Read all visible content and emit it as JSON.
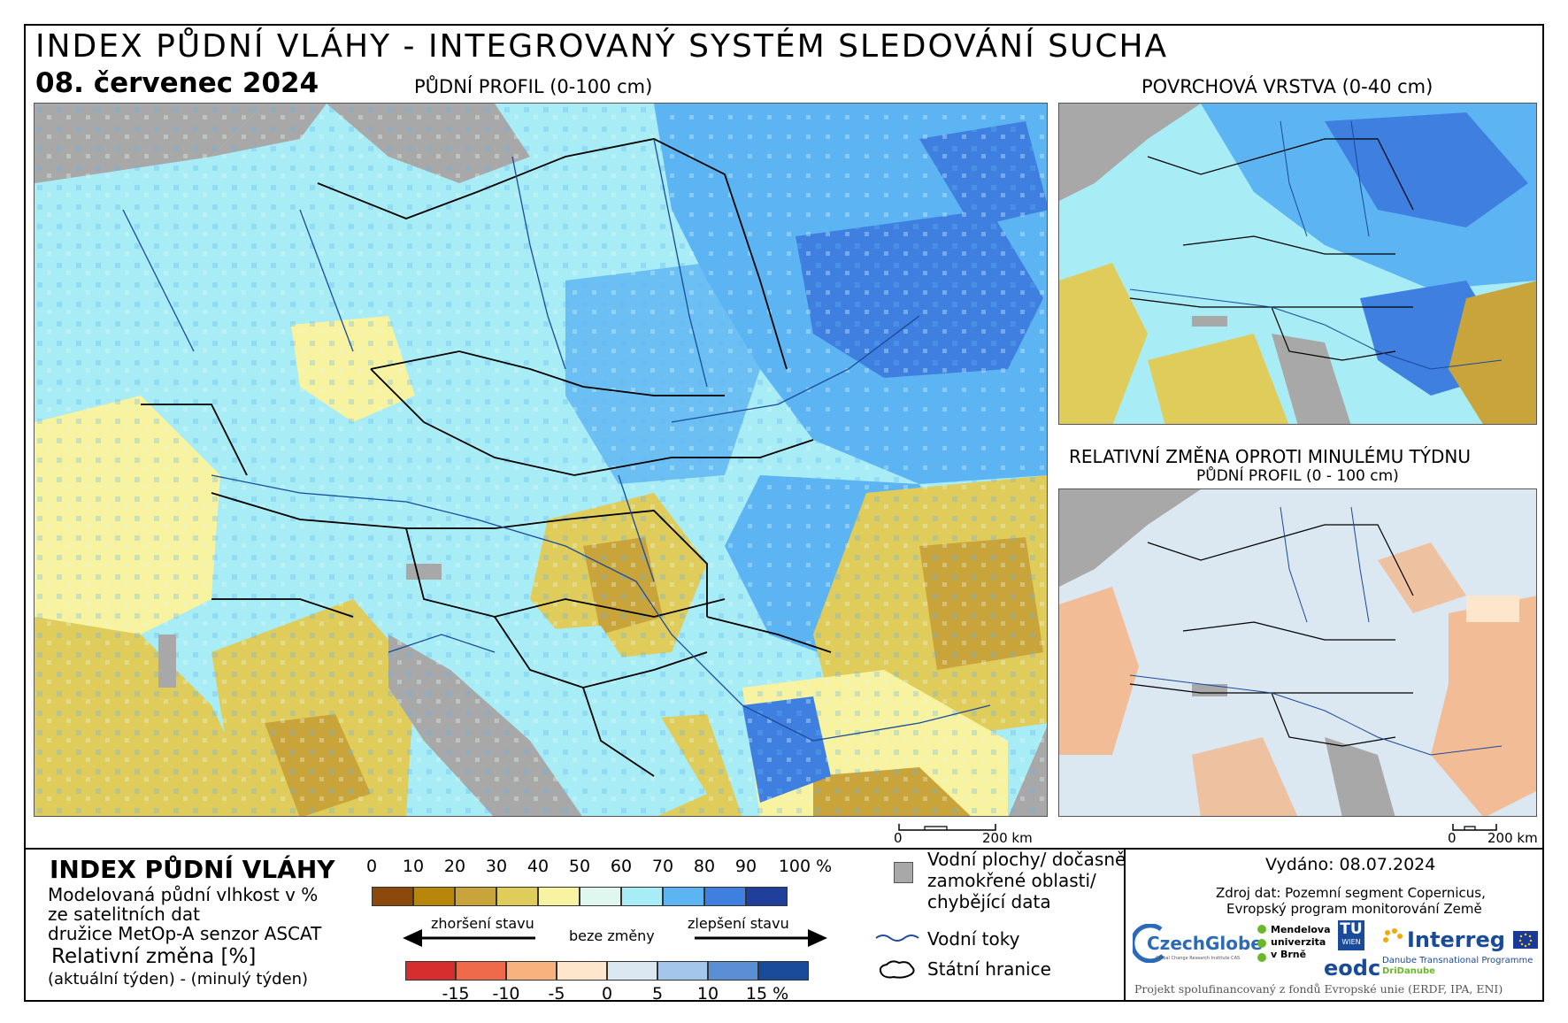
{
  "header": {
    "title": "INDEX PŮDNÍ VLÁHY - INTEGROVANÝ SYSTÉM SLEDOVÁNÍ SUCHA",
    "date": "08. červenec 2024"
  },
  "maps": {
    "main_label": "PŮDNÍ PROFIL (0-100 cm)",
    "surface_label": "POVRCHOVÁ VRSTVA (0-40 cm)",
    "change_label": "RELATIVNÍ ZMĚNA OPROTI MINULÉMU TÝDNU",
    "change_sublabel": "PŮDNÍ PROFIL (0 - 100 cm)",
    "scale_main": {
      "start": "0",
      "end": "200 km"
    },
    "scale_small": {
      "start": "0",
      "end": "200 km"
    }
  },
  "legend": {
    "title": "INDEX PŮDNÍ VLÁHY",
    "desc_line1": "Modelovaná půdní vlhkost v %",
    "desc_line2": "ze satelitních dat",
    "desc_line3": "družice MetOp-A senzor ASCAT",
    "change_title": "Relativní změna [%]",
    "change_desc": "(aktuální týden) - (minulý týden)",
    "index_ticks": [
      "0",
      "10",
      "20",
      "30",
      "40",
      "50",
      "60",
      "70",
      "80",
      "90",
      "100 %"
    ],
    "index_colors": [
      "#8b4a0c",
      "#b8860b",
      "#c9a43a",
      "#e0cc5a",
      "#f7f3a0",
      "#e0f7f0",
      "#a8ecf5",
      "#5db4f2",
      "#3f7fe0",
      "#1f3f9a"
    ],
    "worse_label": "zhoršení stavu",
    "nochange_label": "beze změny",
    "better_label": "zlepšení stavu",
    "change_ticks": [
      "-15",
      "-10",
      "-5",
      "0",
      "5",
      "10",
      "15 %"
    ],
    "change_colors": [
      "#d62e2e",
      "#ef6a4a",
      "#f7b27e",
      "#fde6cc",
      "#dbe8f2",
      "#a4c6ea",
      "#5a8fd6",
      "#1a4a9a"
    ],
    "items": {
      "water_line1": "Vodní plochy/ dočasně",
      "water_line2": "zamokřené oblasti/",
      "water_line3": "chybějící data",
      "rivers": "Vodní toky",
      "borders": "Státní hranice"
    }
  },
  "info": {
    "issued": "Vydáno: 08.07.2024",
    "source_line1": "Zdroj dat: Pozemní segment Copernicus,",
    "source_line2": "Evropský program monitorování Země",
    "funding": "Projekt spolufinancovaný z fondů Evropské unie (ERDF, IPA, ENI)",
    "logos": {
      "czechglobe": "CzechGlobe",
      "czechglobe_sub": "Global Change Research Institute CAS",
      "mendel_line1": "Mendelova",
      "mendel_line2": "univerzita",
      "mendel_line3": "v Brně",
      "tu": "TU",
      "tu_sub": "WIEN",
      "eodc": "eodc",
      "interreg": "Interreg",
      "interreg_sub1": "Danube Transnational Programme",
      "interreg_sub2": "DriDanube"
    }
  }
}
